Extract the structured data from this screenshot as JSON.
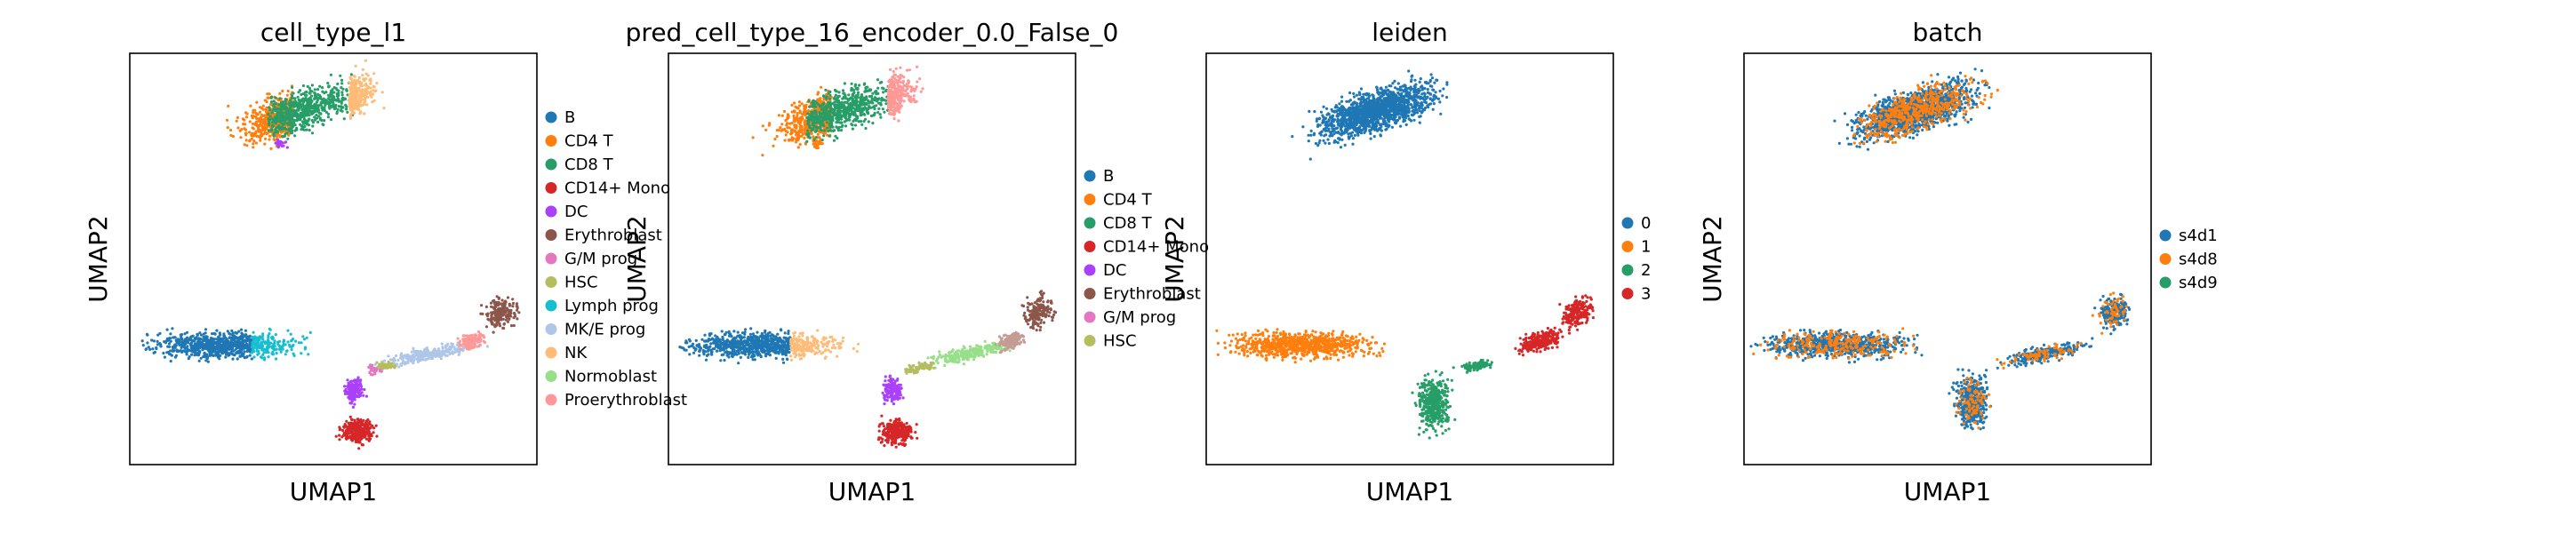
{
  "chart_data": [
    {
      "type": "scatter",
      "title": "cell_type_l1",
      "xlabel": "UMAP1",
      "ylabel": "UMAP2",
      "grid": false,
      "legend_position": "right",
      "legend": [
        {
          "label": "B",
          "color": "#1f77b4"
        },
        {
          "label": "CD4 T",
          "color": "#ff7f0e"
        },
        {
          "label": "CD8 T",
          "color": "#279e68"
        },
        {
          "label": "CD14+ Mono",
          "color": "#d62728"
        },
        {
          "label": "DC",
          "color": "#aa40fc"
        },
        {
          "label": "Erythroblast",
          "color": "#8c564b"
        },
        {
          "label": "G/M prog",
          "color": "#e377c2"
        },
        {
          "label": "HSC",
          "color": "#b5bd61"
        },
        {
          "label": "Lymph prog",
          "color": "#17becf"
        },
        {
          "label": "MK/E prog",
          "color": "#aec7e8"
        },
        {
          "label": "NK",
          "color": "#ffbb78"
        },
        {
          "label": "Normoblast",
          "color": "#98df8a"
        },
        {
          "label": "Proerythroblast",
          "color": "#ff9896"
        }
      ]
    },
    {
      "type": "scatter",
      "title": "pred_cell_type_16_encoder_0.0_False_0",
      "xlabel": "UMAP1",
      "ylabel": "UMAP2",
      "grid": false,
      "legend_position": "right",
      "legend": [
        {
          "label": "B",
          "color": "#1f77b4"
        },
        {
          "label": "CD4 T",
          "color": "#ff7f0e"
        },
        {
          "label": "CD8 T",
          "color": "#279e68"
        },
        {
          "label": "CD14+ Mono",
          "color": "#d62728"
        },
        {
          "label": "DC",
          "color": "#aa40fc"
        },
        {
          "label": "Erythroblast",
          "color": "#8c564b"
        },
        {
          "label": "G/M prog",
          "color": "#e377c2"
        },
        {
          "label": "HSC",
          "color": "#b5bd61"
        }
      ]
    },
    {
      "type": "scatter",
      "title": "leiden",
      "xlabel": "UMAP1",
      "ylabel": "UMAP2",
      "grid": false,
      "legend_position": "right",
      "legend": [
        {
          "label": "0",
          "color": "#1f77b4"
        },
        {
          "label": "1",
          "color": "#ff7f0e"
        },
        {
          "label": "2",
          "color": "#279e68"
        },
        {
          "label": "3",
          "color": "#d62728"
        }
      ]
    },
    {
      "type": "scatter",
      "title": "batch",
      "xlabel": "UMAP1",
      "ylabel": "UMAP2",
      "grid": false,
      "legend_position": "right",
      "legend": [
        {
          "label": "s4d1",
          "color": "#1f77b4"
        },
        {
          "label": "s4d8",
          "color": "#ff7f0e"
        },
        {
          "label": "s4d9",
          "color": "#279e68"
        }
      ]
    }
  ]
}
